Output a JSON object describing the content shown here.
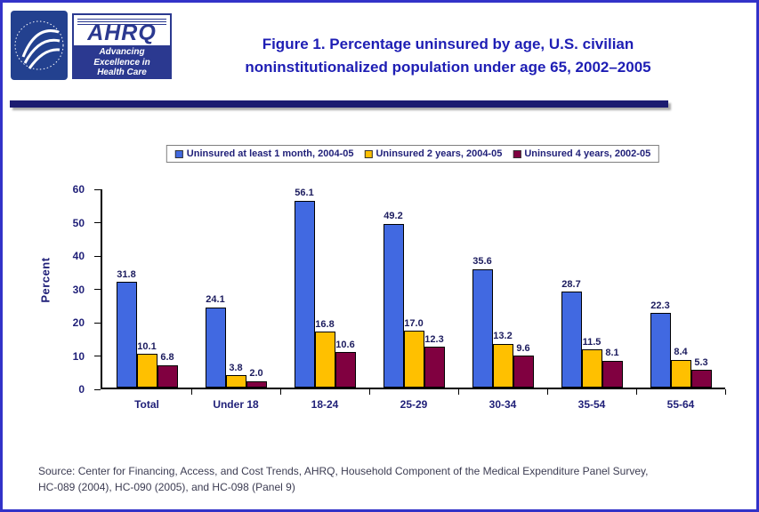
{
  "header": {
    "ahrq": {
      "acronym": "AHRQ",
      "tagline_line1": "Advancing",
      "tagline_line2": "Excellence in",
      "tagline_line3": "Health Care"
    },
    "title_line1": "Figure 1. Percentage uninsured by age, U.S. civilian",
    "title_line2": "noninstitutionalized population under age 65, 2002–2005"
  },
  "chart_data": {
    "type": "bar",
    "title": "Figure 1. Percentage uninsured by age, U.S. civilian noninstitutionalized population under age 65, 2002–2005",
    "xlabel": "",
    "ylabel": "Percent",
    "ylim": [
      0,
      60
    ],
    "yticks": [
      0,
      10,
      20,
      30,
      40,
      50,
      60
    ],
    "grid": false,
    "legend_position": "top",
    "categories": [
      "Total",
      "Under 18",
      "18-24",
      "25-29",
      "30-34",
      "35-54",
      "55-64"
    ],
    "series": [
      {
        "name": "Uninsured at least 1 month, 2004-05",
        "color": "#4169E1",
        "values": [
          31.8,
          24.1,
          56.1,
          49.2,
          35.6,
          28.7,
          22.3
        ]
      },
      {
        "name": "Uninsured 2 years, 2004-05",
        "color": "#FFC000",
        "values": [
          10.1,
          3.8,
          16.8,
          17.0,
          13.2,
          11.5,
          8.4
        ]
      },
      {
        "name": "Uninsured 4 years, 2002-05",
        "color": "#800040",
        "values": [
          6.8,
          2.0,
          10.6,
          12.3,
          9.6,
          8.1,
          5.3
        ]
      }
    ]
  },
  "footer": {
    "source_line1": "Source: Center for Financing, Access, and Cost Trends, AHRQ, Household Component of the Medical Expenditure Panel Survey,",
    "source_line2": "HC-089 (2004), HC-090 (2005), and HC-098 (Panel 9)"
  }
}
